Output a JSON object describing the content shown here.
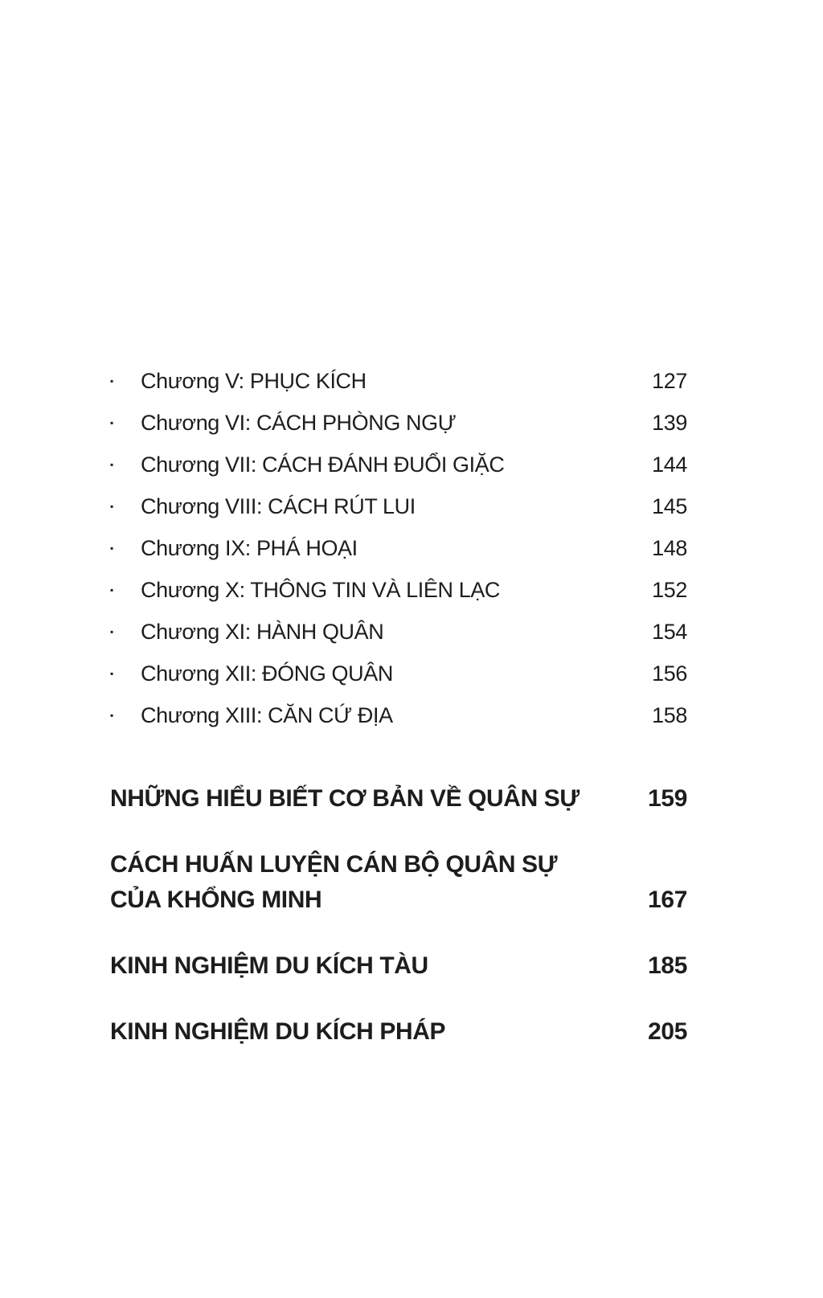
{
  "page": {
    "background": "#ffffff",
    "text_color": "#1d1d1b"
  },
  "toc": {
    "bullet_icon": "▪",
    "chapters": [
      {
        "label": "Chương V: PHỤC KÍCH",
        "page": "127"
      },
      {
        "label": "Chương VI: CÁCH PHÒNG NGỰ",
        "page": "139"
      },
      {
        "label": "Chương VII: CÁCH ĐÁNH ĐUỔI GIẶC",
        "page": "144"
      },
      {
        "label": "Chương VIII: CÁCH RÚT LUI",
        "page": "145"
      },
      {
        "label": "Chương IX: PHÁ HOẠI",
        "page": "148"
      },
      {
        "label": "Chương X: THÔNG TIN VÀ LIÊN LẠC",
        "page": "152"
      },
      {
        "label": "Chương XI: HÀNH QUÂN",
        "page": "154"
      },
      {
        "label": "Chương XII: ĐÓNG QUÂN",
        "page": "156"
      },
      {
        "label": "Chương XIII: CĂN CỨ ĐỊA",
        "page": "158"
      }
    ],
    "sections": [
      {
        "lines": [
          "NHỮNG HIỂU BIẾT CƠ BẢN VỀ QUÂN SỰ"
        ],
        "page": "159"
      },
      {
        "lines": [
          "CÁCH HUẤN LUYỆN CÁN BỘ QUÂN SỰ",
          "CỦA KHỔNG MINH"
        ],
        "page": "167"
      },
      {
        "lines": [
          "KINH NGHIỆM DU KÍCH TÀU"
        ],
        "page": "185"
      },
      {
        "lines": [
          "KINH NGHIỆM DU KÍCH PHÁP"
        ],
        "page": "205"
      }
    ]
  }
}
